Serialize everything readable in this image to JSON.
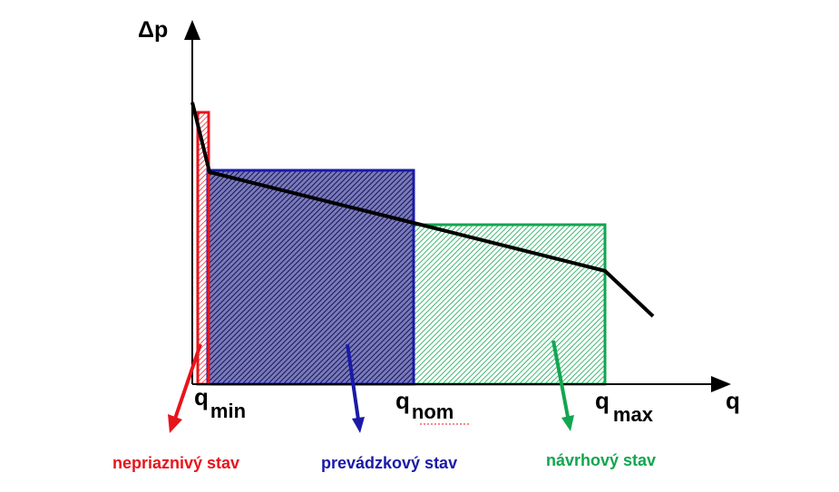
{
  "axes": {
    "y_label": "Δp",
    "x_label": "q"
  },
  "ticks": {
    "q_min": {
      "base": "q",
      "sub": "min"
    },
    "q_nom": {
      "base": "q",
      "sub": "nom"
    },
    "q_max": {
      "base": "q",
      "sub": "max"
    }
  },
  "regions": {
    "unfavorable": {
      "label": "nepriaznivý stav",
      "color": "#e8141b"
    },
    "operating": {
      "label": "prevádzkový stav",
      "color": "#1a1aa8"
    },
    "design": {
      "label": "návrhový stav",
      "color": "#12a650"
    }
  },
  "curve_color": "#000000"
}
